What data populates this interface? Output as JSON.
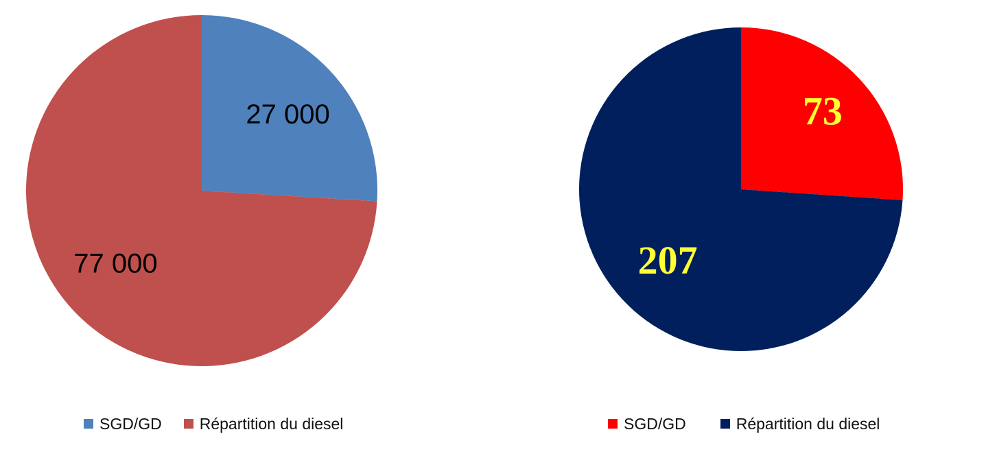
{
  "chart_data": [
    {
      "type": "pie",
      "categories": [
        "SGD/GD",
        "Répartition du diesel"
      ],
      "values": [
        27000,
        77000
      ],
      "value_labels": [
        "27 000",
        "77 000"
      ],
      "colors": [
        "#4f81bd",
        "#c0504d"
      ],
      "label_color": "#000000",
      "label_style": "sans-serif",
      "legend": "bottom"
    },
    {
      "type": "pie",
      "categories": [
        "SGD/GD",
        "Répartition du diesel"
      ],
      "values": [
        73,
        207
      ],
      "value_labels": [
        "73",
        "207"
      ],
      "colors": [
        "#ff0000",
        "#001f5c"
      ],
      "label_color": "#ffff33",
      "label_style": "serif",
      "legend": "bottom"
    }
  ]
}
